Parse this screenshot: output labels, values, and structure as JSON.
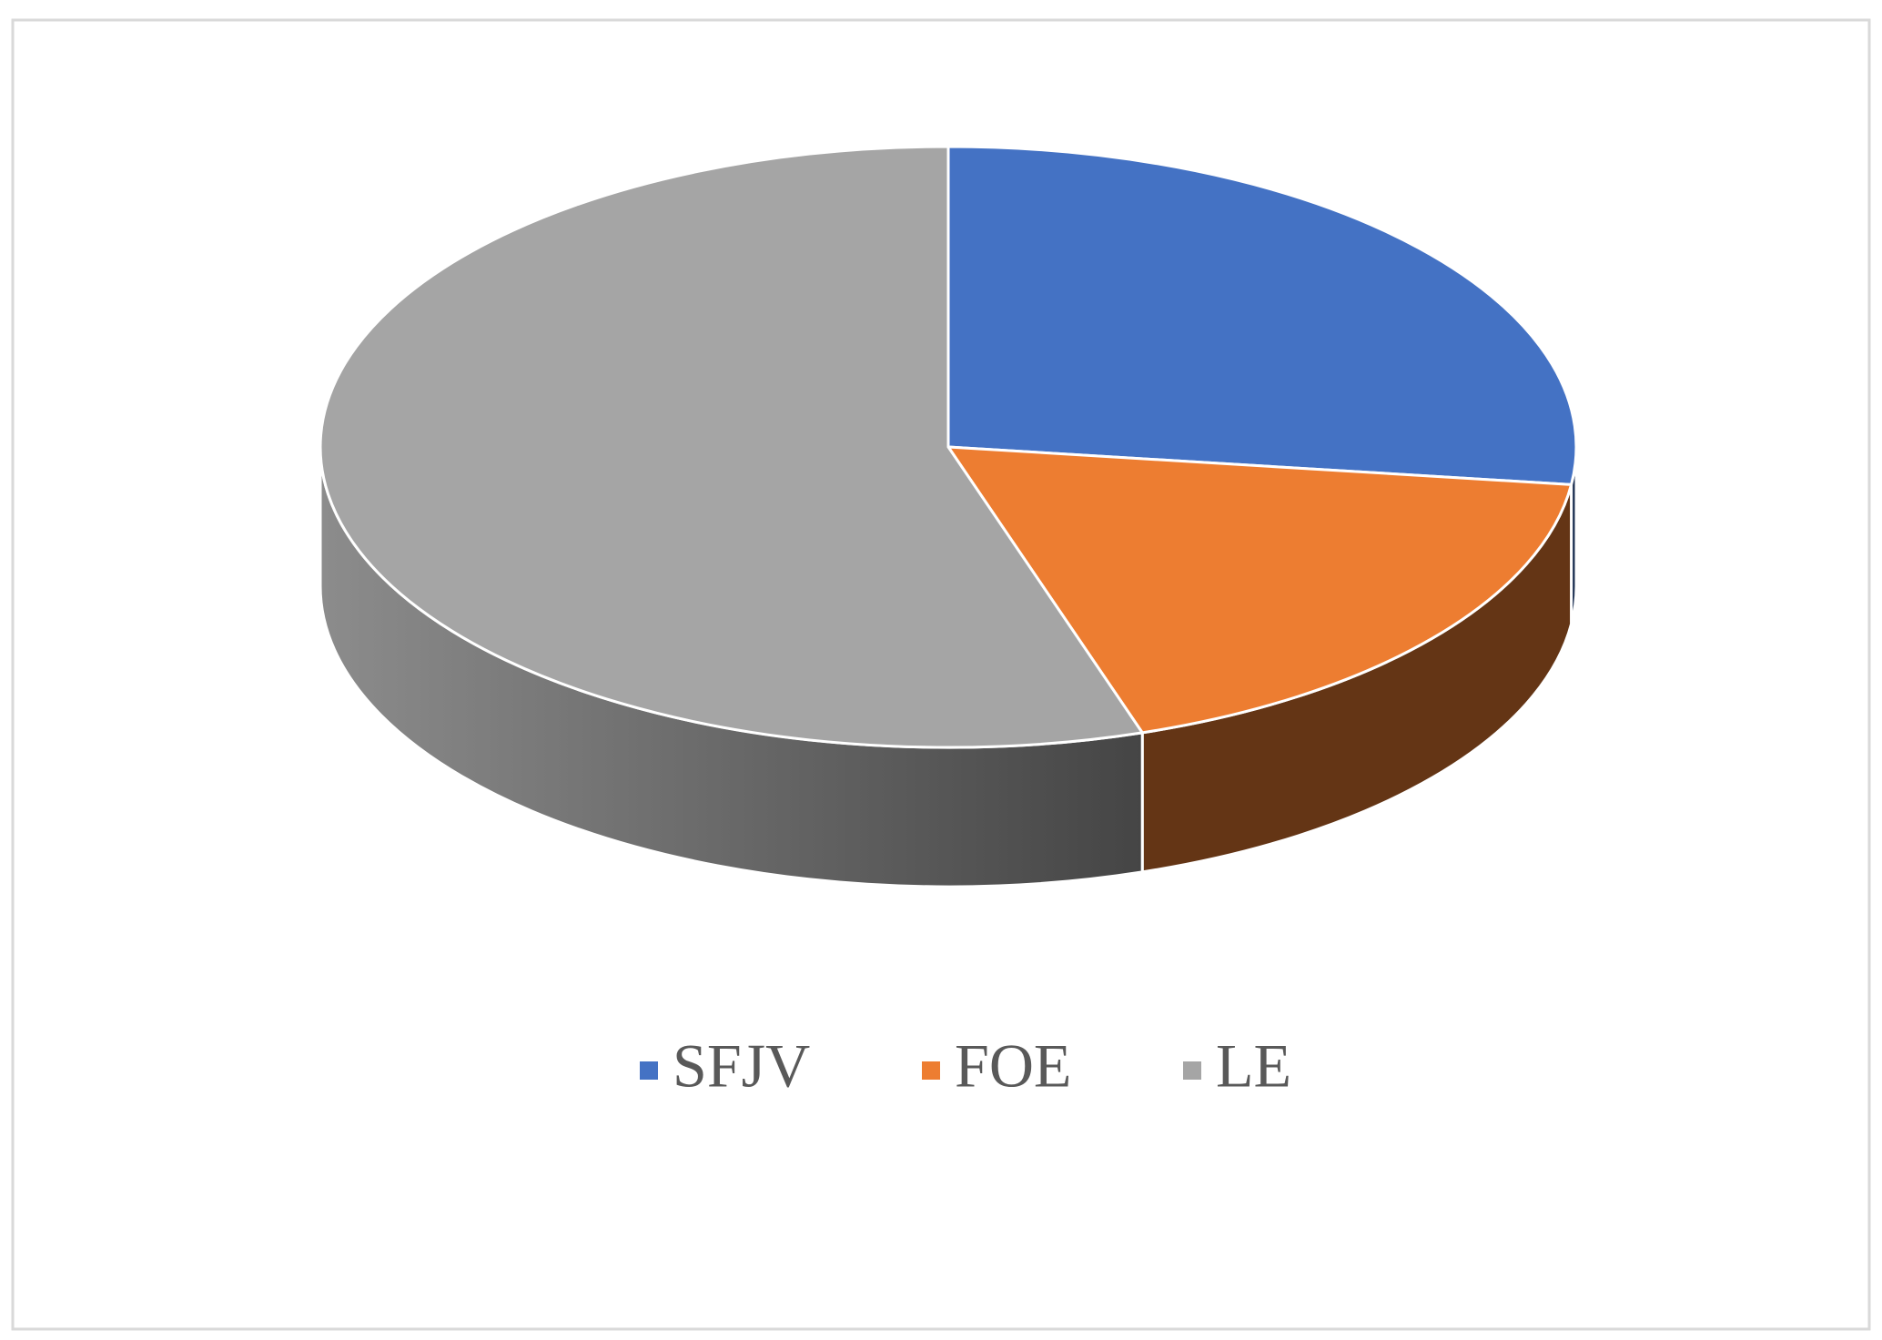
{
  "chart_data": {
    "type": "pie",
    "categories": [
      "SFJV",
      "FOE",
      "LE"
    ],
    "values": [
      27,
      18,
      55
    ],
    "colors": [
      "#4472c4",
      "#ed7d31",
      "#a5a5a5"
    ],
    "legend": "bottom"
  }
}
